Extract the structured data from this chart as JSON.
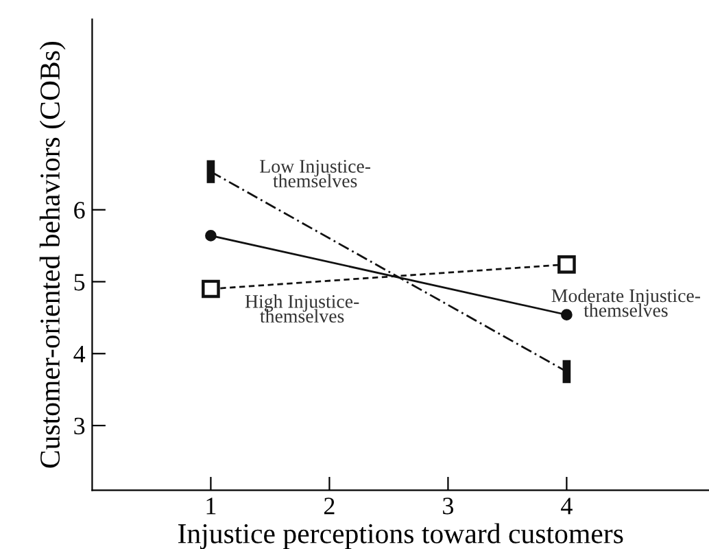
{
  "chart_data": {
    "type": "line",
    "xlabel": "Injustice perceptions toward customers",
    "ylabel": "Customer-oriented behaviors (COBs)",
    "x": [
      1,
      4
    ],
    "xlim": [
      0,
      5.2
    ],
    "xticks": [
      1,
      2,
      3,
      4
    ],
    "ylim": [
      2.1,
      8.65
    ],
    "yticks": [
      3,
      4,
      5,
      6
    ],
    "grid": false,
    "series": [
      {
        "name": "Low Injustice-\nthemselves",
        "color": "#111111",
        "values": [
          6.53,
          3.75
        ],
        "marker": "square",
        "line_style": "dashed"
      },
      {
        "name": "High Injustice-\nthemselves",
        "color": "#111111",
        "values": [
          4.9,
          5.24
        ],
        "marker": "square",
        "line_style": "dashed"
      },
      {
        "name": "Moderate Injustice-\nthemselves",
        "color": "#111111",
        "values": [
          5.64,
          4.54
        ],
        "marker": "circle",
        "line_style": "solid"
      }
    ]
  }
}
